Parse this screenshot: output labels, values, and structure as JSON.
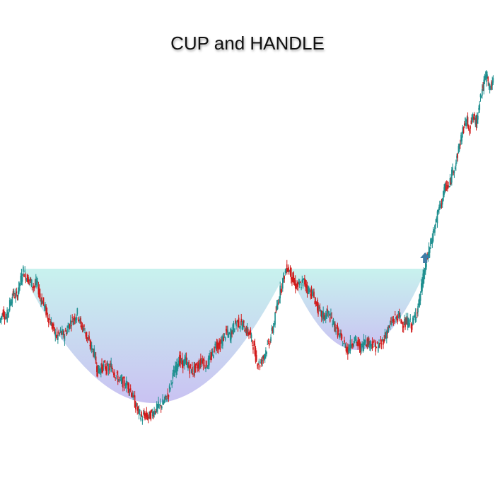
{
  "chart_data": {
    "type": "candlestick",
    "title": "CUP and HANDLE",
    "xlabel": "",
    "ylabel": "",
    "axes_visible": false,
    "grid": false,
    "legend": "none",
    "colors": {
      "up": "#1f8f8f",
      "down": "#d11a1a",
      "cup_fill_top": "#c8f2ee",
      "cup_fill_bottom": "#c9c2f2",
      "breakout_arrow": "#3f7ca6"
    },
    "annotations": [
      {
        "name": "cup",
        "x_start": 6,
        "x_end": 85,
        "rim_level": 100,
        "bottom_level": 24
      },
      {
        "name": "handle",
        "x_start": 85,
        "x_end": 126,
        "rim_level": 100,
        "bottom_level": 54
      },
      {
        "name": "breakout-arrow",
        "x": 127,
        "direction": "up",
        "icon": "up-arrow-icon"
      }
    ],
    "series": [
      {
        "values": [
          70,
          76,
          72,
          80,
          86,
          84,
          92,
          99,
          95,
          93,
          90,
          92,
          84,
          80,
          74,
          70,
          65,
          61,
          64,
          62,
          66,
          70,
          72,
          75,
          68,
          66,
          60,
          56,
          52,
          42,
          44,
          45,
          43,
          45,
          41,
          38,
          36,
          35,
          34,
          30,
          24,
          19,
          16,
          17,
          16,
          18,
          20,
          22,
          23,
          26,
          30,
          38,
          43,
          49,
          46,
          48,
          44,
          42,
          44,
          46,
          49,
          45,
          48,
          52,
          58,
          56,
          60,
          64,
          62,
          66,
          70,
          69,
          68,
          65,
          63,
          57,
          48,
          46,
          50,
          55,
          60,
          68,
          78,
          88,
          95,
          101,
          98,
          92,
          90,
          91,
          93,
          89,
          87,
          84,
          78,
          74,
          73,
          75,
          72,
          68,
          64,
          60,
          57,
          54,
          58,
          60,
          57,
          55,
          60,
          58,
          58,
          56,
          56,
          58,
          62,
          66,
          70,
          72,
          73,
          70,
          69,
          70,
          68,
          74,
          80,
          92,
          102,
          110,
          118,
          126,
          134,
          140,
          147,
          146,
          156,
          160,
          170,
          178,
          184,
          180,
          186,
          182,
          196,
          203,
          210,
          202,
          205
        ]
      }
    ]
  }
}
